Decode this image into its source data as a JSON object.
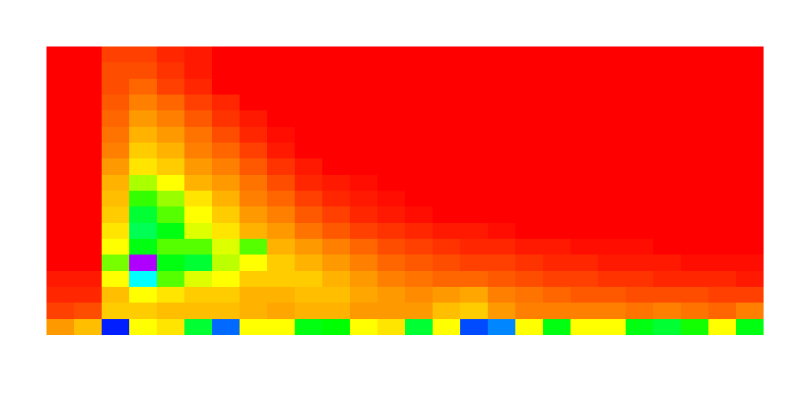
{
  "chart_data": {
    "type": "heatmap",
    "tick_labels": false,
    "cells": [
      [
        0,
        0,
        0.05,
        0.05,
        0.03,
        0.02,
        0,
        0,
        0,
        0,
        0,
        0,
        0,
        0,
        0,
        0,
        0,
        0,
        0,
        0,
        0,
        0,
        0,
        0,
        0,
        0
      ],
      [
        0,
        0,
        0.06,
        0.06,
        0.04,
        0.02,
        0,
        0,
        0,
        0,
        0,
        0,
        0,
        0,
        0,
        0,
        0,
        0,
        0,
        0,
        0,
        0,
        0,
        0,
        0,
        0
      ],
      [
        0,
        0,
        0.06,
        0.08,
        0.05,
        0.03,
        0,
        0,
        0,
        0,
        0,
        0,
        0,
        0,
        0,
        0,
        0,
        0,
        0,
        0,
        0,
        0,
        0,
        0,
        0,
        0
      ],
      [
        0,
        0,
        0.07,
        0.1,
        0.08,
        0.05,
        0.03,
        0,
        0,
        0,
        0,
        0,
        0,
        0,
        0,
        0,
        0,
        0,
        0,
        0,
        0,
        0,
        0,
        0,
        0,
        0
      ],
      [
        0,
        0,
        0.08,
        0.12,
        0.1,
        0.07,
        0.04,
        0.02,
        0,
        0,
        0,
        0,
        0,
        0,
        0,
        0,
        0,
        0,
        0,
        0,
        0,
        0,
        0,
        0,
        0,
        0
      ],
      [
        0,
        0,
        0.09,
        0.14,
        0.12,
        0.09,
        0.06,
        0.03,
        0.01,
        0,
        0,
        0,
        0,
        0,
        0,
        0,
        0,
        0,
        0,
        0,
        0,
        0,
        0,
        0,
        0,
        0
      ],
      [
        0,
        0,
        0.1,
        0.16,
        0.14,
        0.1,
        0.08,
        0.05,
        0.02,
        0,
        0,
        0,
        0,
        0,
        0,
        0,
        0,
        0,
        0,
        0,
        0,
        0,
        0,
        0,
        0,
        0
      ],
      [
        0,
        0,
        0.12,
        0.18,
        0.16,
        0.12,
        0.1,
        0.07,
        0.04,
        0.02,
        0,
        0,
        0,
        0,
        0,
        0,
        0,
        0,
        0,
        0,
        0,
        0,
        0,
        0,
        0,
        0
      ],
      [
        0,
        0,
        0.14,
        0.25,
        0.2,
        0.14,
        0.12,
        0.09,
        0.06,
        0.03,
        0.02,
        0.01,
        0,
        0,
        0,
        0,
        0,
        0,
        0,
        0,
        0,
        0,
        0,
        0,
        0,
        0
      ],
      [
        0,
        0,
        0.15,
        0.32,
        0.26,
        0.18,
        0.14,
        0.1,
        0.08,
        0.05,
        0.03,
        0.02,
        0.01,
        0,
        0,
        0,
        0,
        0,
        0,
        0,
        0,
        0,
        0,
        0,
        0,
        0
      ],
      [
        0,
        0,
        0.16,
        0.38,
        0.3,
        0.2,
        0.16,
        0.12,
        0.1,
        0.07,
        0.05,
        0.03,
        0.02,
        0.01,
        0,
        0,
        0,
        0,
        0,
        0,
        0,
        0,
        0,
        0,
        0,
        0
      ],
      [
        0,
        0,
        0.18,
        0.4,
        0.36,
        0.22,
        0.18,
        0.14,
        0.12,
        0.09,
        0.07,
        0.05,
        0.04,
        0.03,
        0.02,
        0.02,
        0.01,
        0,
        0,
        0,
        0,
        0,
        0,
        0,
        0,
        0
      ],
      [
        0,
        0,
        0.2,
        0.36,
        0.3,
        0.3,
        0.22,
        0.3,
        0.14,
        0.12,
        0.1,
        0.08,
        0.06,
        0.05,
        0.04,
        0.03,
        0.03,
        0.02,
        0.02,
        0.01,
        0.01,
        0.01,
        0,
        0,
        0,
        0
      ],
      [
        0,
        0,
        0.28,
        0.78,
        0.36,
        0.38,
        0.24,
        0.2,
        0.16,
        0.14,
        0.12,
        0.1,
        0.08,
        0.07,
        0.06,
        0.05,
        0.05,
        0.04,
        0.03,
        0.03,
        0.02,
        0.02,
        0.02,
        0.01,
        0.01,
        0.01
      ],
      [
        0.02,
        0.02,
        0.2,
        0.5,
        0.3,
        0.22,
        0.2,
        0.16,
        0.16,
        0.16,
        0.14,
        0.12,
        0.1,
        0.09,
        0.08,
        0.08,
        0.07,
        0.06,
        0.05,
        0.05,
        0.04,
        0.04,
        0.03,
        0.03,
        0.03,
        0.02
      ],
      [
        0.03,
        0.03,
        0.15,
        0.2,
        0.18,
        0.16,
        0.16,
        0.14,
        0.14,
        0.15,
        0.15,
        0.13,
        0.12,
        0.11,
        0.12,
        0.13,
        0.1,
        0.09,
        0.08,
        0.07,
        0.07,
        0.06,
        0.06,
        0.06,
        0.05,
        0.05
      ],
      [
        0.05,
        0.06,
        0.16,
        0.16,
        0.15,
        0.15,
        0.15,
        0.14,
        0.13,
        0.14,
        0.14,
        0.12,
        0.12,
        0.12,
        0.15,
        0.16,
        0.12,
        0.1,
        0.1,
        0.1,
        0.1,
        0.09,
        0.1,
        0.09,
        0.08,
        0.1
      ],
      [
        0.12,
        0.15,
        0.65,
        0.2,
        0.18,
        0.38,
        0.6,
        0.2,
        0.2,
        0.36,
        0.35,
        0.2,
        0.18,
        0.38,
        0.2,
        0.62,
        0.58,
        0.2,
        0.36,
        0.2,
        0.2,
        0.36,
        0.38,
        0.34,
        0.2,
        0.36
      ]
    ]
  }
}
